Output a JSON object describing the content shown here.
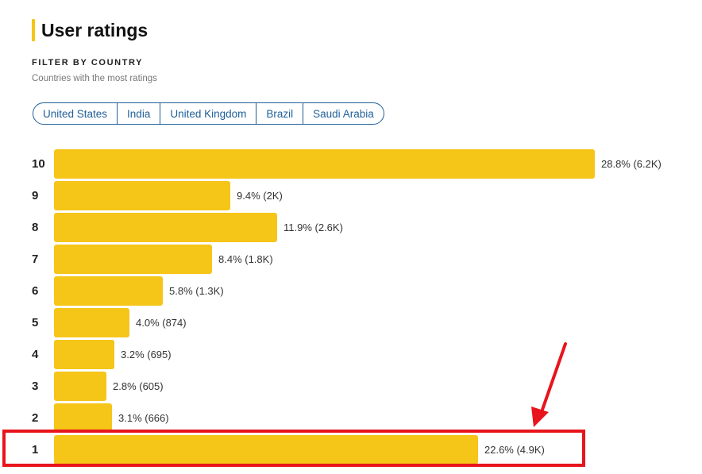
{
  "header": {
    "title": "User ratings"
  },
  "filter": {
    "heading": "FILTER BY COUNTRY",
    "subheading": "Countries with the most ratings",
    "countries": [
      "United States",
      "India",
      "United Kingdom",
      "Brazil",
      "Saudi Arabia"
    ]
  },
  "colors": {
    "accent": "#f5c518",
    "chip_border": "#1f5f99",
    "highlight": "#e8141c"
  },
  "chart_data": {
    "type": "bar",
    "orientation": "horizontal",
    "categories": [
      "10",
      "9",
      "8",
      "7",
      "6",
      "5",
      "4",
      "3",
      "2",
      "1"
    ],
    "values": [
      28.8,
      9.4,
      11.9,
      8.4,
      5.8,
      4.0,
      3.2,
      2.8,
      3.1,
      22.6
    ],
    "value_labels": [
      "28.8% (6.2K)",
      "9.4% (2K)",
      "11.9% (2.6K)",
      "8.4% (1.8K)",
      "5.8% (1.3K)",
      "4.0% (874)",
      "3.2% (695)",
      "2.8% (605)",
      "3.1% (666)",
      "22.6% (4.9K)"
    ],
    "highlighted_category": "1"
  }
}
